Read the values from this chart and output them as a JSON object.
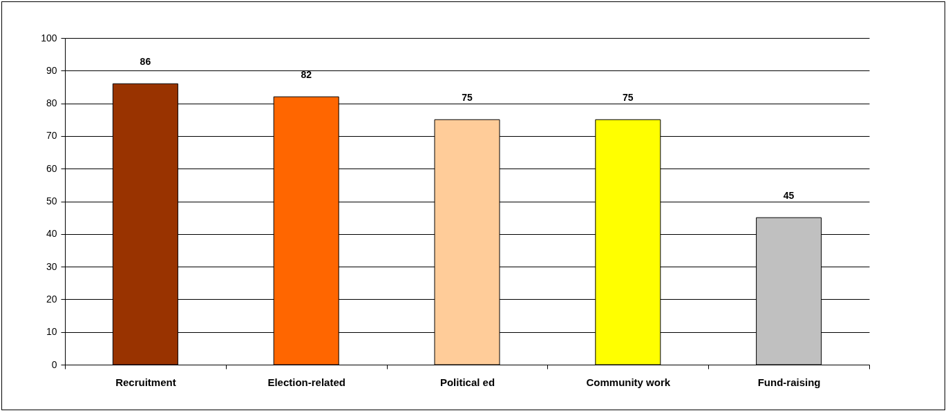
{
  "chart_data": {
    "type": "bar",
    "categories": [
      "Recruitment",
      "Election-related",
      "Political ed",
      "Community work",
      "Fund-raising"
    ],
    "values": [
      86,
      82,
      75,
      75,
      45
    ],
    "colors": [
      "#993300",
      "#ff6600",
      "#ffcc99",
      "#ffff00",
      "#c0c0c0"
    ],
    "ylim": [
      0,
      100
    ],
    "yticks": [
      0,
      10,
      20,
      30,
      40,
      50,
      60,
      70,
      80,
      90,
      100
    ],
    "grid": "y",
    "data_labels": true
  }
}
